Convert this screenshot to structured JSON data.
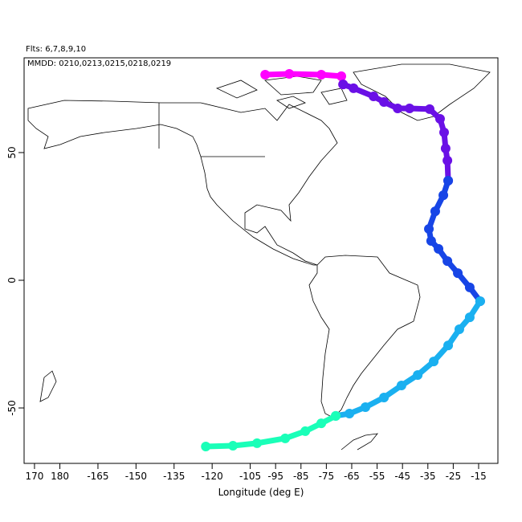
{
  "chart_data": {
    "type": "line",
    "title": "Flts: 6,7,8,9,10",
    "subtitle": "MMDD: 0210,0213,0215,0218,0219",
    "x_label": "Longitude (deg E)",
    "xlim": [
      -194.1,
      -7.4
    ],
    "ylim": [
      -71.7,
      87.1
    ],
    "xticks": [
      {
        "value": -190,
        "label": "170"
      },
      {
        "value": -180,
        "label": "180"
      },
      -165,
      -150,
      -135,
      -120,
      -105,
      -95,
      -85,
      -75,
      -65,
      -55,
      -45,
      -35,
      -25,
      -15
    ],
    "yticks": [
      -50,
      0,
      50
    ],
    "series": [
      {
        "color": "#ff00ff",
        "x": [
          -99.1,
          -89.6,
          -77.0,
          -69.1,
          -68.4
        ],
        "y": [
          80.5,
          80.8,
          80.5,
          79.9,
          76.7
        ]
      },
      {
        "color": "#6a10e6",
        "x": [
          -68.4,
          -64.3,
          -56.4,
          -52.3,
          -46.9,
          -42.2,
          -34.3,
          -30.2,
          -28.6,
          -28.0,
          -27.3,
          -27.0
        ],
        "y": [
          76.7,
          75.2,
          72.0,
          69.8,
          67.3,
          67.3,
          67.0,
          63.2,
          57.9,
          51.6,
          46.9,
          39.0
        ]
      },
      {
        "color": "#1745e6",
        "x": [
          -27.0,
          -28.9,
          -32.1,
          -34.6,
          -33.7,
          -30.8,
          -27.3,
          -23.2,
          -18.5,
          -14.4
        ],
        "y": [
          39.0,
          33.3,
          27.0,
          20.1,
          15.4,
          12.3,
          7.5,
          2.8,
          -2.8,
          -8.2
        ]
      },
      {
        "color": "#1ab0f0",
        "x": [
          -14.4,
          -18.5,
          -22.6,
          -27.0,
          -32.7,
          -39.0,
          -45.4,
          -52.3,
          -59.6,
          -65.9,
          -71.3
        ],
        "y": [
          -8.2,
          -14.5,
          -19.2,
          -25.5,
          -31.8,
          -37.1,
          -41.2,
          -45.9,
          -49.7,
          -52.2,
          -53.1
        ]
      },
      {
        "color": "#1affb8",
        "x": [
          -71.3,
          -77.0,
          -83.3,
          -91.2,
          -102.3,
          -111.8,
          -122.5
        ],
        "y": [
          -53.1,
          -56.0,
          -59.1,
          -61.9,
          -63.8,
          -64.8,
          -65.1
        ]
      }
    ]
  }
}
